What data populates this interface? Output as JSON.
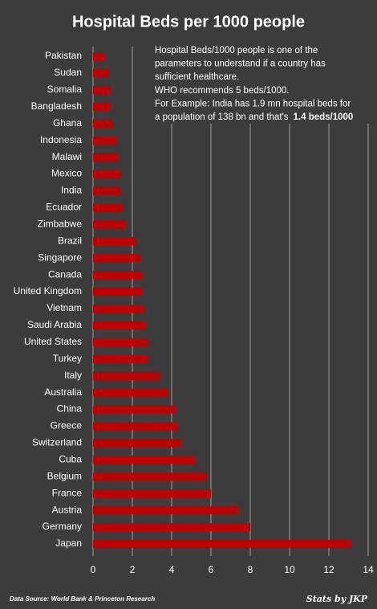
{
  "chart_data": {
    "type": "bar",
    "orientation": "horizontal",
    "title": "Hospital Beds per 1000 people",
    "annotation": [
      "Hospital Beds/1000 people is one of the",
      "parameters to understand if a country has",
      "sufficient healthcare.",
      "WHO recommends 5 beds/1000.",
      "For Example: India has 1.9 mn hospital beds for",
      "a population of 138 bn and that's"
    ],
    "annotation_highlight": "1.4 beds/1000",
    "categories": [
      "Pakistan",
      "Sudan",
      "Somalia",
      "Bangladesh",
      "Ghana",
      "Indonesia",
      "Malawi",
      "Mexico",
      "India",
      "Ecuador",
      "Zimbabwe",
      "Brazil",
      "Singapore",
      "Canada",
      "United Kingdom",
      "Vietnam",
      "Saudi Arabia",
      "United States",
      "Turkey",
      "Italy",
      "Australia",
      "China",
      "Greece",
      "Switzerland",
      "Cuba",
      "Belgium",
      "France",
      "Austria",
      "Germany",
      "Japan"
    ],
    "values": [
      0.6,
      0.8,
      0.9,
      0.9,
      1.0,
      1.2,
      1.3,
      1.4,
      1.4,
      1.5,
      1.7,
      2.2,
      2.4,
      2.5,
      2.5,
      2.6,
      2.7,
      2.8,
      2.8,
      3.4,
      3.8,
      4.2,
      4.3,
      4.5,
      5.2,
      5.8,
      6.0,
      7.4,
      8.0,
      13.1
    ],
    "color": "#c00000",
    "xlim": [
      0,
      14
    ],
    "xticks": [
      0,
      2,
      4,
      6,
      8,
      10,
      12,
      14
    ],
    "grid": true,
    "source": "Data Source: World Bank & Princeton Research",
    "signature": "Stats by JKP"
  }
}
